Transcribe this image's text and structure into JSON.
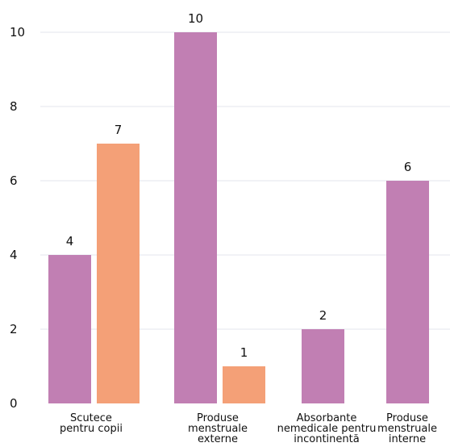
{
  "chart_data": {
    "type": "bar",
    "title": "",
    "xlabel": "",
    "ylabel": "",
    "ylim": [
      0,
      10
    ],
    "yticks": [
      0,
      2,
      4,
      6,
      8,
      10
    ],
    "grid": true,
    "legend": "none",
    "categories": [
      [
        "Scutece",
        "pentru copii"
      ],
      [
        "Produse",
        "menstruale",
        "externe"
      ],
      [
        "Absorbante",
        "nemedicale pentru",
        "incontinentă"
      ],
      [
        "Produse",
        "menstruale",
        "interne"
      ]
    ],
    "series": [
      {
        "color": "#c17fb3",
        "values": [
          4,
          10,
          2,
          6
        ]
      },
      {
        "color": "#f4a077",
        "values": [
          7,
          1,
          null,
          null
        ]
      }
    ]
  }
}
